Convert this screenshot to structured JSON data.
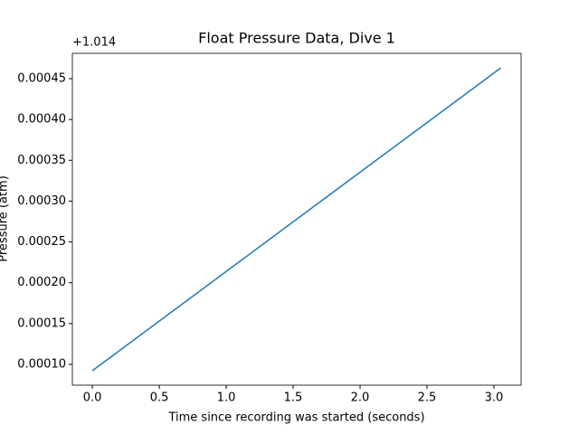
{
  "chart_data": {
    "type": "line",
    "title": "Float Pressure Data, Dive 1",
    "x_label": "Time since recording was started (seconds)",
    "y_label": "Pressure (atm)",
    "y_offset_label": "+1.014",
    "x": [
      0,
      3.05
    ],
    "series": [
      {
        "name": "pressure",
        "color": "#1f77b4",
        "values": [
          9.22e-05,
          0.000463
        ]
      }
    ],
    "xlim": [
      -0.149,
      3.203
    ],
    "ylim": [
      7.45e-05,
      0.000481
    ],
    "xticks": [
      {
        "value": 0,
        "label": "0.0"
      },
      {
        "value": 0.5,
        "label": "0.5"
      },
      {
        "value": 1,
        "label": "1.0"
      },
      {
        "value": 1.5,
        "label": "1.5"
      },
      {
        "value": 2,
        "label": "2.0"
      },
      {
        "value": 2.5,
        "label": "2.5"
      },
      {
        "value": 3,
        "label": "3.0"
      }
    ],
    "yticks": [
      {
        "value": 0.0001,
        "label": "0.00010"
      },
      {
        "value": 0.00015,
        "label": "0.00015"
      },
      {
        "value": 0.0002,
        "label": "0.00020"
      },
      {
        "value": 0.00025,
        "label": "0.00025"
      },
      {
        "value": 0.0003,
        "label": "0.00030"
      },
      {
        "value": 0.00035,
        "label": "0.00035"
      },
      {
        "value": 0.0004,
        "label": "0.00040"
      },
      {
        "value": 0.00045,
        "label": "0.00045"
      }
    ],
    "grid": false
  }
}
